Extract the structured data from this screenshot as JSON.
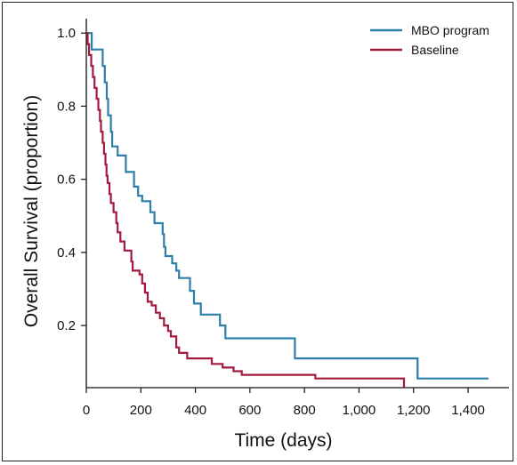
{
  "chart_data": {
    "type": "line",
    "title": "",
    "xlabel": "Time (days)",
    "ylabel": "Overall Survival (proportion)",
    "xlim": [
      0,
      1550
    ],
    "ylim": [
      0.03,
      1.02
    ],
    "x_ticks": [
      0,
      200,
      400,
      600,
      800,
      1000,
      1200,
      1400
    ],
    "x_tick_labels": [
      "0",
      "200",
      "400",
      "600",
      "800",
      "1,000",
      "1,200",
      "1,400"
    ],
    "y_ticks": [
      0.2,
      0.4,
      0.6,
      0.8,
      1.0
    ],
    "y_tick_labels": [
      "0.2",
      "0.4",
      "0.6",
      "0.8",
      "1.0"
    ],
    "legend_position": "top-right",
    "step": true,
    "series": [
      {
        "name": "MBO program",
        "color": "#2e7fa8",
        "points": [
          [
            0,
            1.0
          ],
          [
            20,
            0.955
          ],
          [
            60,
            0.91
          ],
          [
            68,
            0.865
          ],
          [
            75,
            0.82
          ],
          [
            80,
            0.775
          ],
          [
            90,
            0.73
          ],
          [
            95,
            0.69
          ],
          [
            115,
            0.665
          ],
          [
            145,
            0.62
          ],
          [
            175,
            0.58
          ],
          [
            190,
            0.555
          ],
          [
            205,
            0.54
          ],
          [
            235,
            0.51
          ],
          [
            250,
            0.48
          ],
          [
            280,
            0.45
          ],
          [
            285,
            0.415
          ],
          [
            290,
            0.39
          ],
          [
            315,
            0.37
          ],
          [
            330,
            0.35
          ],
          [
            340,
            0.33
          ],
          [
            380,
            0.295
          ],
          [
            395,
            0.26
          ],
          [
            420,
            0.23
          ],
          [
            490,
            0.2
          ],
          [
            510,
            0.165
          ],
          [
            765,
            0.11
          ],
          [
            1215,
            0.055
          ],
          [
            1475,
            0.055
          ]
        ]
      },
      {
        "name": "Baseline",
        "color": "#a31a3c",
        "points": [
          [
            0,
            1.0
          ],
          [
            5,
            0.97
          ],
          [
            10,
            0.94
          ],
          [
            18,
            0.91
          ],
          [
            24,
            0.88
          ],
          [
            30,
            0.85
          ],
          [
            38,
            0.82
          ],
          [
            44,
            0.79
          ],
          [
            50,
            0.76
          ],
          [
            54,
            0.73
          ],
          [
            60,
            0.7
          ],
          [
            65,
            0.67
          ],
          [
            70,
            0.64
          ],
          [
            74,
            0.61
          ],
          [
            78,
            0.59
          ],
          [
            85,
            0.56
          ],
          [
            90,
            0.535
          ],
          [
            100,
            0.51
          ],
          [
            110,
            0.48
          ],
          [
            115,
            0.455
          ],
          [
            125,
            0.43
          ],
          [
            140,
            0.405
          ],
          [
            165,
            0.375
          ],
          [
            170,
            0.35
          ],
          [
            195,
            0.34
          ],
          [
            205,
            0.315
          ],
          [
            215,
            0.29
          ],
          [
            225,
            0.265
          ],
          [
            240,
            0.255
          ],
          [
            255,
            0.235
          ],
          [
            270,
            0.22
          ],
          [
            285,
            0.2
          ],
          [
            300,
            0.185
          ],
          [
            310,
            0.17
          ],
          [
            330,
            0.14
          ],
          [
            340,
            0.125
          ],
          [
            370,
            0.11
          ],
          [
            460,
            0.095
          ],
          [
            500,
            0.085
          ],
          [
            540,
            0.075
          ],
          [
            570,
            0.065
          ],
          [
            840,
            0.055
          ],
          [
            1165,
            0.03
          ]
        ]
      }
    ]
  }
}
